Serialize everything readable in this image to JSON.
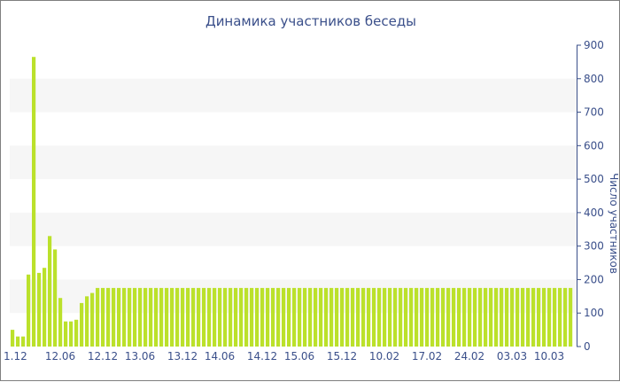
{
  "chart_data": {
    "type": "bar",
    "title": "Динамика участников беседы",
    "xlabel": "",
    "ylabel": "Число участников",
    "ylim": [
      0,
      900
    ],
    "yticks": [
      0,
      100,
      200,
      300,
      400,
      500,
      600,
      700,
      800,
      900
    ],
    "grid": "alternating horizontal bands",
    "y_axis_position": "right",
    "bar_color": "#bbe12b",
    "band_color": "#f6f6f6",
    "text_color": "#3a4f8a",
    "x_tick_labels": [
      "1.12",
      "12.06",
      "12.12",
      "13.06",
      "13.12",
      "14.06",
      "14.12",
      "15.06",
      "15.12",
      "10.02",
      "17.02",
      "24.02",
      "03.03",
      "10.03"
    ],
    "x_tick_bar_index": [
      1,
      9,
      17,
      24,
      32,
      39,
      47,
      54,
      62,
      70,
      78,
      86,
      94,
      101
    ],
    "series": [
      {
        "values": [
          50,
          30,
          30,
          215,
          865,
          220,
          235,
          330,
          290,
          145,
          75,
          75,
          80,
          130,
          150,
          160,
          175,
          175,
          175,
          175,
          175,
          175,
          175,
          175,
          175,
          175,
          175,
          175,
          175,
          175,
          175,
          175,
          175,
          175,
          175,
          175,
          175,
          175,
          175,
          175,
          175,
          175,
          175,
          175,
          175,
          175,
          175,
          175,
          175,
          175,
          175,
          175,
          175,
          175,
          175,
          175,
          175,
          175,
          175,
          175,
          175,
          175,
          175,
          175,
          175,
          175,
          175,
          175,
          175,
          175,
          175,
          175,
          175,
          175,
          175,
          175,
          175,
          175,
          175,
          175,
          175,
          175,
          175,
          175,
          175,
          175,
          175,
          175,
          175,
          175,
          175,
          175,
          175,
          175,
          175,
          175,
          175,
          175,
          175,
          175,
          175,
          175,
          175,
          175,
          175,
          175
        ]
      }
    ]
  }
}
